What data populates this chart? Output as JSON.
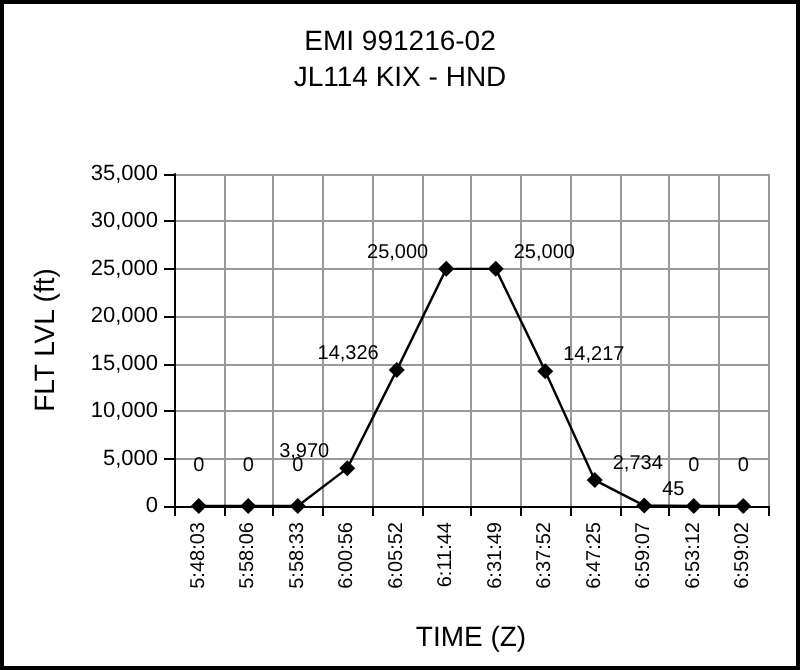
{
  "chart_data": {
    "type": "line",
    "title": "EMI 991216-02",
    "subtitle": "JL114 KIX - HND",
    "xlabel": "TIME (Z)",
    "ylabel": "FLT LVL (ft)",
    "categories": [
      "5:48:03",
      "5:58:06",
      "5:58:33",
      "6:00:56",
      "6:05:52",
      "6:11:44",
      "6:31:49",
      "6:37:52",
      "6:47:25",
      "6:59:07",
      "6:53:12",
      "6:59:02"
    ],
    "series": [
      {
        "color": "#000000",
        "values": [
          0,
          0,
          0,
          3970,
          14326,
          25000,
          25000,
          14217,
          2734,
          45,
          0,
          0
        ],
        "value_labels": [
          "0",
          "0",
          "0",
          "3,970",
          "14,326",
          "25,000",
          "25,000",
          "14,217",
          "2,734",
          "45",
          "0",
          "0"
        ]
      }
    ],
    "ylim": [
      0,
      35000
    ],
    "yticks": [
      0,
      {
        "value": 5000,
        "label": "5,000"
      },
      {
        "value": 10000,
        "label": "10,000"
      },
      {
        "value": 15000,
        "label": "15,000"
      },
      {
        "value": 20000,
        "label": "20,000"
      },
      {
        "value": 25000,
        "label": "25,000"
      },
      {
        "value": 30000,
        "label": "30,000"
      },
      {
        "value": 35000,
        "label": "35,000"
      }
    ],
    "grid": true,
    "marker": "diamond",
    "line_style": "solid"
  }
}
